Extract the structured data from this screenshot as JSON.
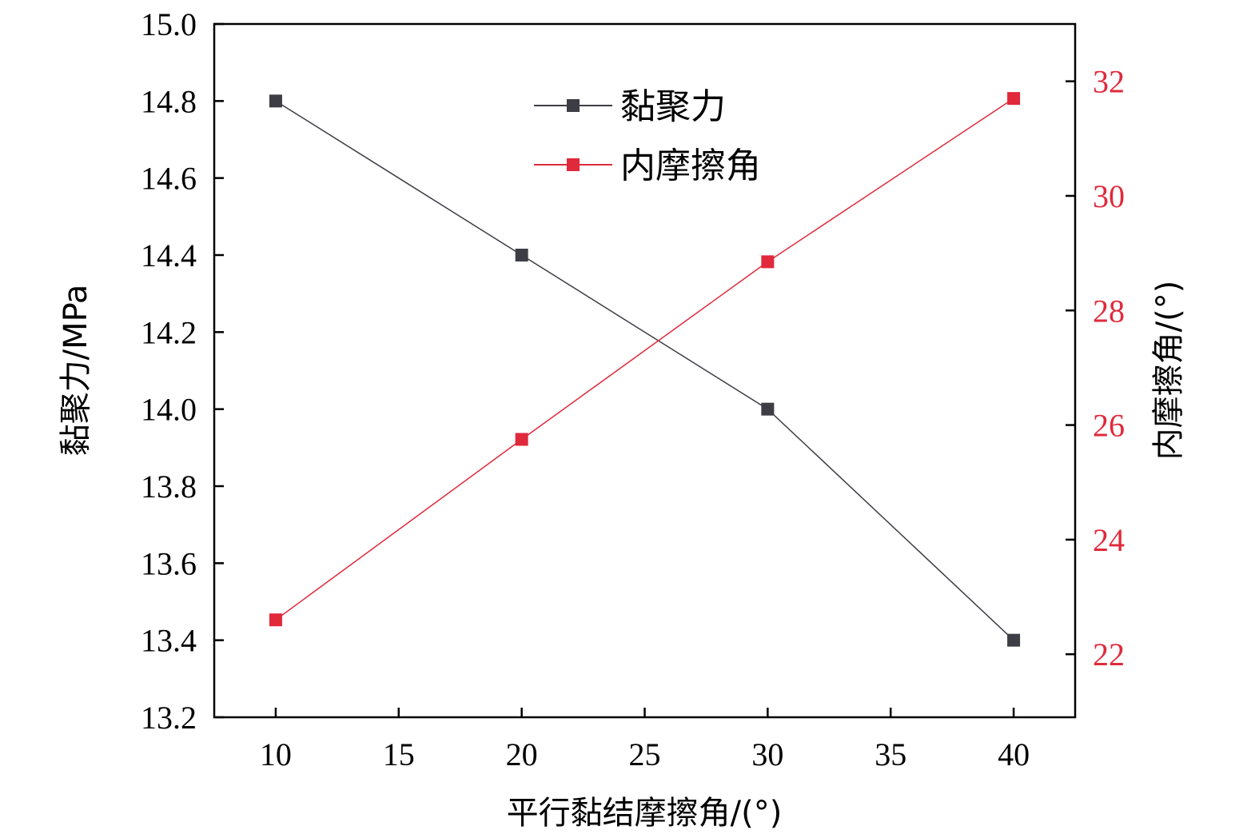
{
  "chart_data": {
    "type": "line",
    "x": [
      10,
      20,
      30,
      40
    ],
    "xlabel": "平行黏结摩擦角/(°)",
    "ylabel_left": "黏聚力/MPa",
    "ylabel_right": "内摩擦角/(°)",
    "xlim": [
      7.5,
      42.5
    ],
    "xticks": [
      10,
      15,
      20,
      25,
      30,
      35,
      40
    ],
    "ylim_left": [
      13.2,
      15.0
    ],
    "yticks_left": [
      "13.2",
      "13.4",
      "13.6",
      "13.8",
      "14.0",
      "14.2",
      "14.4",
      "14.6",
      "14.8",
      "15.0"
    ],
    "ylim_right": [
      20.9,
      33.0
    ],
    "yticks_right": [
      "22",
      "24",
      "26",
      "28",
      "30",
      "32"
    ],
    "legend_position": "top-center",
    "grid": false,
    "series": [
      {
        "name": "黏聚力",
        "axis": "left",
        "color": "#3d3d45",
        "marker": "square",
        "values": [
          14.8,
          14.4,
          14.0,
          13.4
        ]
      },
      {
        "name": "内摩擦角",
        "axis": "right",
        "color": "#e0293b",
        "marker": "square",
        "values": [
          22.6,
          25.75,
          28.85,
          31.7
        ]
      }
    ],
    "right_axis_color": "#e0293b"
  }
}
